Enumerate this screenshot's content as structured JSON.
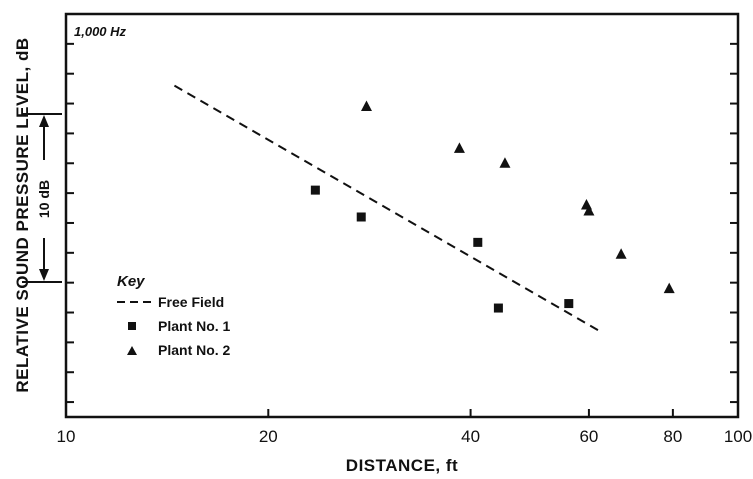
{
  "chart_data": {
    "type": "scatter",
    "title": "",
    "annotation": "1,000 Hz",
    "xlabel": "DISTANCE, ft",
    "ylabel": "RELATIVE SOUND PRESSURE LEVEL, dB",
    "x_scale": "log",
    "xlim": [
      10,
      100
    ],
    "x_ticks": [
      10,
      20,
      40,
      60,
      80,
      100
    ],
    "x_tick_labels": [
      "10",
      "20",
      "40",
      "60",
      "80",
      "100"
    ],
    "ylim": [
      0,
      27
    ],
    "y_unit": "dB (relative)",
    "y_minor_ticks": [
      1,
      3,
      5,
      7,
      9,
      11,
      13,
      15,
      17,
      19,
      21,
      23,
      25
    ],
    "scale_bar": {
      "label": "10 dB",
      "from": 10,
      "to": 20
    },
    "grid": false,
    "legend": {
      "title": "Key",
      "placement": "lower-left",
      "entries": [
        "Free Field",
        "Plant No. 1",
        "Plant No. 2"
      ]
    },
    "series": [
      {
        "name": "Free Field",
        "style": "dashed-line",
        "x": [
          14.5,
          62
        ],
        "y": [
          22.2,
          5.8
        ]
      },
      {
        "name": "Plant No. 1",
        "marker": "square",
        "x": [
          23.5,
          27.5,
          41,
          44,
          56
        ],
        "y": [
          15.2,
          13.4,
          11.7,
          7.3,
          7.6
        ]
      },
      {
        "name": "Plant No. 2",
        "marker": "triangle",
        "x": [
          28,
          38.5,
          45,
          59.5,
          60,
          67,
          79
        ],
        "y": [
          20.8,
          18.0,
          17.0,
          14.2,
          13.8,
          10.9,
          8.6
        ]
      }
    ]
  }
}
